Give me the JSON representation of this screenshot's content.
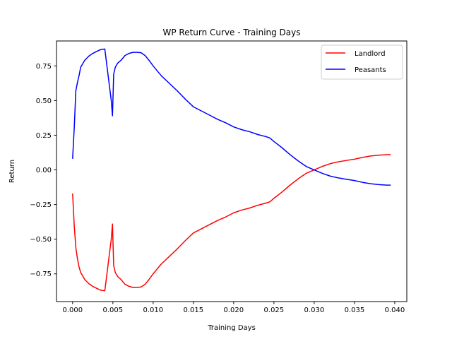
{
  "chart_data": {
    "type": "line",
    "title": "WP Return Curve - Training Days",
    "xlabel": "Training Days",
    "ylabel": "Return",
    "xlim": [
      -0.002,
      0.0415
    ],
    "ylim": [
      -0.95,
      0.93
    ],
    "xticks": [
      0.0,
      0.005,
      0.01,
      0.015,
      0.02,
      0.025,
      0.03,
      0.035,
      0.04
    ],
    "xtick_labels": [
      "0.000",
      "0.005",
      "0.010",
      "0.015",
      "0.020",
      "0.025",
      "0.030",
      "0.035",
      "0.040"
    ],
    "yticks": [
      -0.75,
      -0.5,
      -0.25,
      0.0,
      0.25,
      0.5,
      0.75
    ],
    "ytick_labels": [
      "−0.75",
      "−0.50",
      "−0.25",
      "0.00",
      "0.25",
      "0.50",
      "0.75"
    ],
    "grid": false,
    "legend_position": "top-right",
    "series": [
      {
        "name": "Landlord",
        "color": "#ff0000",
        "x": [
          0.0,
          0.0002,
          0.0004,
          0.0006,
          0.0008,
          0.001,
          0.0015,
          0.002,
          0.0025,
          0.003,
          0.0035,
          0.004,
          0.0048,
          0.00495,
          0.0051,
          0.0053,
          0.0056,
          0.006,
          0.0065,
          0.007,
          0.0075,
          0.008,
          0.0085,
          0.009,
          0.0095,
          0.01,
          0.011,
          0.012,
          0.013,
          0.014,
          0.015,
          0.016,
          0.017,
          0.018,
          0.019,
          0.02,
          0.021,
          0.022,
          0.023,
          0.024,
          0.0245,
          0.025,
          0.026,
          0.027,
          0.028,
          0.029,
          0.03,
          0.031,
          0.032,
          0.033,
          0.034,
          0.035,
          0.036,
          0.037,
          0.038,
          0.039,
          0.0395
        ],
        "y": [
          -0.17,
          -0.4,
          -0.56,
          -0.64,
          -0.7,
          -0.74,
          -0.79,
          -0.82,
          -0.84,
          -0.855,
          -0.868,
          -0.872,
          -0.5,
          -0.39,
          -0.69,
          -0.74,
          -0.77,
          -0.79,
          -0.825,
          -0.84,
          -0.848,
          -0.848,
          -0.845,
          -0.825,
          -0.79,
          -0.75,
          -0.68,
          -0.625,
          -0.57,
          -0.51,
          -0.455,
          -0.425,
          -0.395,
          -0.365,
          -0.34,
          -0.31,
          -0.29,
          -0.275,
          -0.255,
          -0.24,
          -0.23,
          -0.205,
          -0.16,
          -0.11,
          -0.065,
          -0.025,
          0.0,
          0.025,
          0.045,
          0.058,
          0.068,
          0.077,
          0.09,
          0.1,
          0.106,
          0.11,
          0.11
        ]
      },
      {
        "name": "Peasants",
        "color": "#0000ff",
        "x": [
          0.0,
          0.0002,
          0.0004,
          0.0006,
          0.0008,
          0.001,
          0.0015,
          0.002,
          0.0025,
          0.003,
          0.0035,
          0.004,
          0.0048,
          0.00495,
          0.0051,
          0.0053,
          0.0056,
          0.006,
          0.0065,
          0.007,
          0.0075,
          0.008,
          0.0085,
          0.009,
          0.0095,
          0.01,
          0.011,
          0.012,
          0.013,
          0.014,
          0.015,
          0.016,
          0.017,
          0.018,
          0.019,
          0.02,
          0.021,
          0.022,
          0.023,
          0.024,
          0.0245,
          0.025,
          0.026,
          0.027,
          0.028,
          0.029,
          0.03,
          0.031,
          0.032,
          0.033,
          0.034,
          0.035,
          0.036,
          0.037,
          0.038,
          0.039,
          0.0395
        ],
        "y": [
          0.08,
          0.3,
          0.57,
          0.63,
          0.68,
          0.74,
          0.79,
          0.82,
          0.84,
          0.855,
          0.868,
          0.872,
          0.5,
          0.39,
          0.69,
          0.74,
          0.77,
          0.79,
          0.825,
          0.84,
          0.848,
          0.848,
          0.845,
          0.825,
          0.79,
          0.75,
          0.68,
          0.625,
          0.57,
          0.51,
          0.455,
          0.425,
          0.395,
          0.365,
          0.34,
          0.31,
          0.29,
          0.275,
          0.255,
          0.24,
          0.23,
          0.205,
          0.16,
          0.11,
          0.065,
          0.025,
          0.0,
          -0.025,
          -0.045,
          -0.058,
          -0.068,
          -0.077,
          -0.09,
          -0.1,
          -0.106,
          -0.11,
          -0.11
        ]
      }
    ]
  }
}
